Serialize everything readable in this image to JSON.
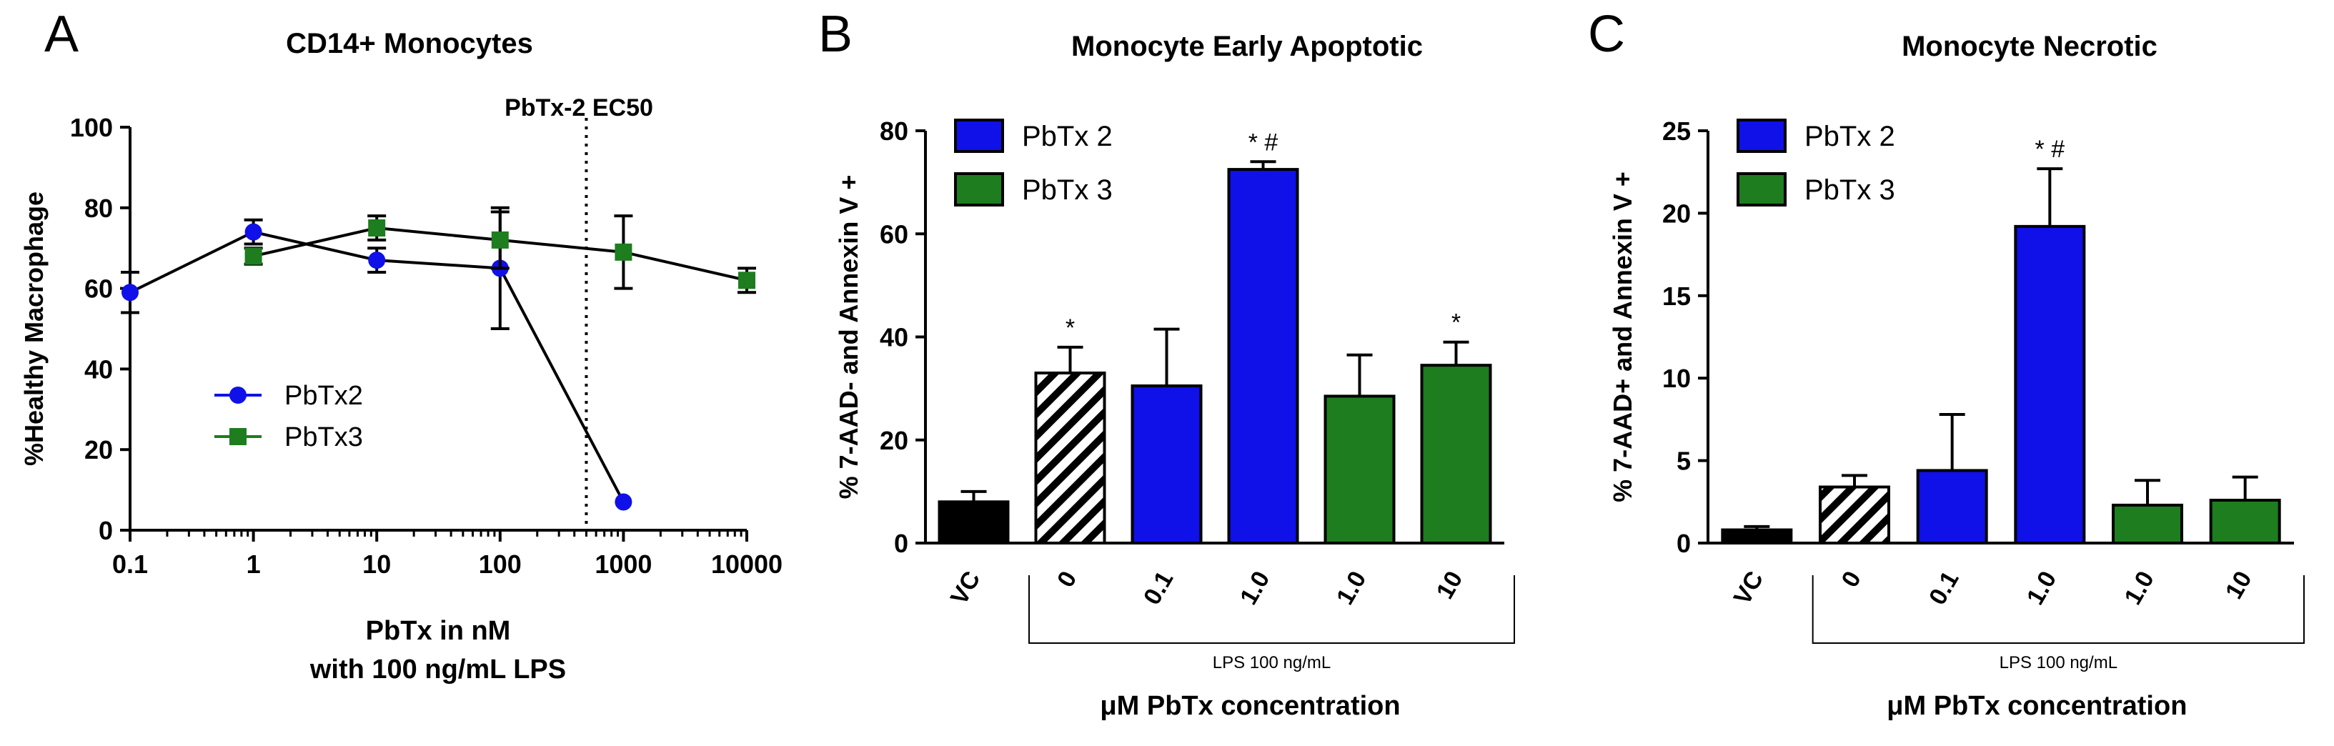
{
  "colors": {
    "pbtx2": "#1010e8",
    "pbtx3": "#1e7d1e",
    "vc": "#000000",
    "axis": "#000000"
  },
  "chart_data": [
    {
      "panel_label": "A",
      "type": "line",
      "title": "CD14+ Monocytes",
      "xlabel": [
        "PbTx in nM",
        "with 100 ng/mL LPS"
      ],
      "ylabel": "%Healthy Macrophage",
      "xscale": "log",
      "xlim": [
        0.1,
        10000
      ],
      "ylim": [
        0,
        100
      ],
      "xticks": [
        0.1,
        1,
        10,
        100,
        1000,
        10000
      ],
      "xtick_labels": [
        "0.1",
        "1",
        "10",
        "100",
        "1000",
        "10000"
      ],
      "yticks": [
        0,
        20,
        40,
        60,
        80,
        100
      ],
      "ytick_labels": [
        "0",
        "20",
        "40",
        "60",
        "80",
        "100"
      ],
      "legend_position": "lower-left",
      "series": [
        {
          "name": "PbTx2",
          "marker": "circle",
          "color": "#1010e8",
          "x": [
            0.1,
            1,
            10,
            100,
            1000
          ],
          "y": [
            59,
            74,
            67,
            65,
            7
          ],
          "err": [
            5,
            3,
            3,
            15,
            0
          ]
        },
        {
          "name": "PbTx3",
          "marker": "square",
          "color": "#1e7d1e",
          "x": [
            1,
            10,
            100,
            1000,
            10000
          ],
          "y": [
            68,
            75,
            72,
            69,
            62
          ],
          "err": [
            2,
            3,
            7,
            9,
            3
          ]
        }
      ],
      "annotations": [
        {
          "text": "PbTx-2 EC50",
          "x": 500,
          "style": "dotted vertical line"
        }
      ]
    },
    {
      "panel_label": "B",
      "type": "bar",
      "title": "Monocyte Early Apoptotic",
      "ylabel": "% 7-AAD- and Annexin V +",
      "xlabel": "μM PbTx concentration",
      "bracket_label": "LPS 100 ng/mL",
      "ylim": [
        0,
        80
      ],
      "yticks": [
        0,
        20,
        40,
        60,
        80
      ],
      "ytick_labels": [
        "0",
        "20",
        "40",
        "60",
        "80"
      ],
      "categories": [
        "VC",
        "0",
        "0.1",
        "1.0",
        "1.0",
        "10"
      ],
      "values": [
        8,
        33,
        30.5,
        72.5,
        28.5,
        34.5
      ],
      "errors": [
        2,
        5,
        11,
        1.5,
        8,
        4.5
      ],
      "fills": [
        "#000000",
        "hatch",
        "#1010e8",
        "#1010e8",
        "#1e7d1e",
        "#1e7d1e"
      ],
      "significance": [
        "",
        "*",
        "",
        "* #",
        "",
        "*"
      ],
      "legend_position": "top-left",
      "legend": [
        {
          "name": "PbTx 2",
          "color": "#1010e8"
        },
        {
          "name": "PbTx 3",
          "color": "#1e7d1e"
        }
      ]
    },
    {
      "panel_label": "C",
      "type": "bar",
      "title": "Monocyte Necrotic",
      "ylabel": "% 7-AAD+ and Annexin V +",
      "xlabel": "μM PbTx concentration",
      "bracket_label": "LPS 100 ng/mL",
      "ylim": [
        0,
        25
      ],
      "yticks": [
        0,
        5,
        10,
        15,
        20,
        25
      ],
      "ytick_labels": [
        "0",
        "5",
        "10",
        "15",
        "20",
        "25"
      ],
      "categories": [
        "VC",
        "0",
        "0.1",
        "1.0",
        "1.0",
        "10"
      ],
      "values": [
        0.8,
        3.4,
        4.4,
        19.2,
        2.3,
        2.6
      ],
      "errors": [
        0.2,
        0.7,
        3.4,
        3.5,
        1.5,
        1.4
      ],
      "fills": [
        "#000000",
        "hatch",
        "#1010e8",
        "#1010e8",
        "#1e7d1e",
        "#1e7d1e"
      ],
      "significance": [
        "",
        "",
        "",
        "* #",
        "",
        ""
      ],
      "legend_position": "top-left",
      "legend": [
        {
          "name": "PbTx 2",
          "color": "#1010e8"
        },
        {
          "name": "PbTx 3",
          "color": "#1e7d1e"
        }
      ]
    }
  ]
}
